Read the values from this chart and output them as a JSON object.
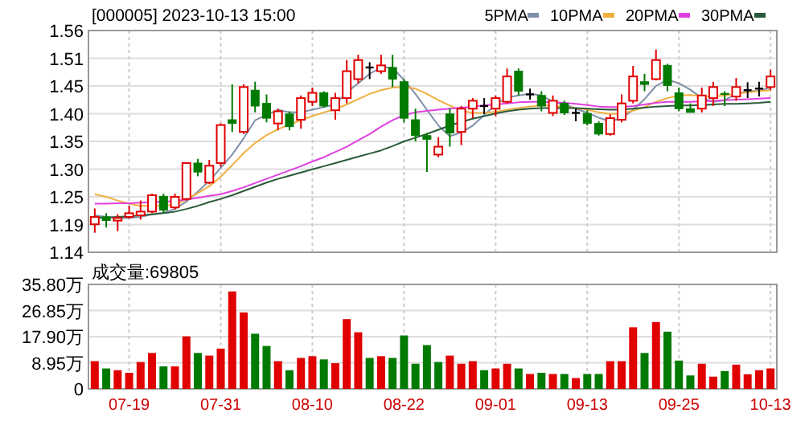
{
  "chart_data": [
    {
      "type": "candlestick",
      "title": "[000005] 2023-10-13 15:00",
      "categories": [
        null,
        null,
        null,
        null,
        null,
        null,
        null,
        null,
        null,
        null,
        null,
        null,
        null,
        null,
        null,
        null,
        null,
        null,
        null,
        null,
        null,
        null,
        null,
        null,
        null,
        null,
        null,
        null,
        null,
        null,
        null,
        null,
        null,
        null,
        null,
        null,
        null,
        null,
        null,
        null,
        null,
        null,
        null,
        null,
        null,
        null,
        null,
        null,
        null,
        null,
        null,
        null,
        null,
        null,
        null,
        null,
        null,
        null,
        null,
        null
      ],
      "ohlc": [
        [
          1.193,
          1.223,
          1.177,
          1.207
        ],
        [
          1.207,
          1.214,
          1.187,
          1.2
        ],
        [
          1.2,
          1.212,
          1.18,
          1.205
        ],
        [
          1.207,
          1.228,
          1.204,
          1.214
        ],
        [
          1.21,
          1.238,
          1.202,
          1.217
        ],
        [
          1.217,
          1.251,
          1.214,
          1.248
        ],
        [
          1.246,
          1.251,
          1.214,
          1.22
        ],
        [
          1.225,
          1.251,
          1.221,
          1.245
        ],
        [
          1.241,
          1.309,
          1.238,
          1.309
        ],
        [
          1.309,
          1.317,
          1.284,
          1.292
        ],
        [
          1.272,
          1.315,
          1.269,
          1.304
        ],
        [
          1.309,
          1.384,
          1.302,
          1.381
        ],
        [
          1.391,
          1.458,
          1.368,
          1.384
        ],
        [
          1.368,
          1.458,
          1.364,
          1.453
        ],
        [
          1.447,
          1.463,
          1.405,
          1.417
        ],
        [
          1.422,
          1.439,
          1.386,
          1.394
        ],
        [
          1.384,
          1.412,
          1.371,
          1.407
        ],
        [
          1.402,
          1.407,
          1.371,
          1.378
        ],
        [
          1.391,
          1.437,
          1.374,
          1.432
        ],
        [
          1.425,
          1.452,
          1.417,
          1.442
        ],
        [
          1.442,
          1.445,
          1.414,
          1.417
        ],
        [
          1.409,
          1.442,
          1.391,
          1.432
        ],
        [
          1.432,
          1.504,
          1.422,
          1.483
        ],
        [
          1.468,
          1.514,
          1.46,
          1.504
        ],
        [
          1.49,
          1.5,
          1.468,
          1.49
        ],
        [
          1.483,
          1.514,
          1.478,
          1.494
        ],
        [
          1.49,
          1.514,
          1.453,
          1.468
        ],
        [
          1.463,
          1.468,
          1.386,
          1.394
        ],
        [
          1.391,
          1.412,
          1.35,
          1.361
        ],
        [
          1.361,
          1.366,
          1.292,
          1.354
        ],
        [
          1.325,
          1.358,
          1.32,
          1.34
        ],
        [
          1.402,
          1.412,
          1.34,
          1.366
        ],
        [
          1.368,
          1.417,
          1.343,
          1.412
        ],
        [
          1.412,
          1.432,
          1.394,
          1.427
        ],
        [
          1.417,
          1.432,
          1.402,
          1.417
        ],
        [
          1.412,
          1.437,
          1.398,
          1.432
        ],
        [
          1.425,
          1.488,
          1.422,
          1.473
        ],
        [
          1.483,
          1.488,
          1.437,
          1.445
        ],
        [
          1.439,
          1.45,
          1.429,
          1.439
        ],
        [
          1.437,
          1.445,
          1.407,
          1.417
        ],
        [
          1.404,
          1.437,
          1.398,
          1.427
        ],
        [
          1.422,
          1.427,
          1.4,
          1.404
        ],
        [
          1.404,
          1.412,
          1.388,
          1.404
        ],
        [
          1.403,
          1.409,
          1.38,
          1.384
        ],
        [
          1.384,
          1.388,
          1.361,
          1.364
        ],
        [
          1.364,
          1.401,
          1.361,
          1.394
        ],
        [
          1.391,
          1.439,
          1.386,
          1.422
        ],
        [
          1.427,
          1.493,
          1.422,
          1.473
        ],
        [
          1.463,
          1.478,
          1.445,
          1.458
        ],
        [
          1.468,
          1.524,
          1.466,
          1.504
        ],
        [
          1.494,
          1.497,
          1.445,
          1.456
        ],
        [
          1.442,
          1.452,
          1.407,
          1.412
        ],
        [
          1.412,
          1.422,
          1.405,
          1.405
        ],
        [
          1.412,
          1.452,
          1.405,
          1.437
        ],
        [
          1.432,
          1.463,
          1.417,
          1.453
        ],
        [
          1.441,
          1.445,
          1.417,
          1.439
        ],
        [
          1.435,
          1.47,
          1.427,
          1.453
        ],
        [
          1.447,
          1.462,
          1.432,
          1.447
        ],
        [
          1.45,
          1.463,
          1.435,
          1.45
        ],
        [
          1.453,
          1.486,
          1.447,
          1.473
        ]
      ],
      "colors": [
        "#e00000",
        "#007a00",
        "#e00000",
        "#e00000",
        "#e00000",
        "#e00000",
        "#007a00",
        "#e00000",
        "#e00000",
        "#007a00",
        "#e00000",
        "#e00000",
        "#007a00",
        "#e00000",
        "#007a00",
        "#007a00",
        "#e00000",
        "#007a00",
        "#e00000",
        "#e00000",
        "#007a00",
        "#e00000",
        "#e00000",
        "#e00000",
        "#000000",
        "#e00000",
        "#007a00",
        "#007a00",
        "#007a00",
        "#007a00",
        "#e00000",
        "#007a00",
        "#e00000",
        "#e00000",
        "#000000",
        "#e00000",
        "#e00000",
        "#007a00",
        "#000000",
        "#007a00",
        "#e00000",
        "#007a00",
        "#000000",
        "#007a00",
        "#007a00",
        "#e00000",
        "#e00000",
        "#e00000",
        "#007a00",
        "#e00000",
        "#007a00",
        "#007a00",
        "#007a00",
        "#e00000",
        "#e00000",
        "#007a00",
        "#e00000",
        "#000000",
        "#000000",
        "#e00000"
      ],
      "series": [
        {
          "name": "5PMA",
          "type": "line",
          "color": "#8090a8",
          "values": [
            1.21,
            1.207,
            1.205,
            1.205,
            1.207,
            1.212,
            1.215,
            1.222,
            1.236,
            1.255,
            1.275,
            1.3,
            1.325,
            1.356,
            1.39,
            1.4,
            1.41,
            1.405,
            1.405,
            1.41,
            1.415,
            1.42,
            1.443,
            1.46,
            1.478,
            1.49,
            1.49,
            1.466,
            1.44,
            1.41,
            1.38,
            1.36,
            1.367,
            1.38,
            1.4,
            1.42,
            1.433,
            1.437,
            1.44,
            1.437,
            1.425,
            1.42,
            1.412,
            1.404,
            1.395,
            1.388,
            1.394,
            1.41,
            1.43,
            1.455,
            1.467,
            1.46,
            1.448,
            1.432,
            1.425,
            1.428,
            1.44,
            1.445,
            1.446,
            1.452
          ]
        },
        {
          "name": "10PMA",
          "type": "line",
          "color": "#f0b040",
          "values": [
            1.25,
            1.245,
            1.238,
            1.232,
            1.228,
            1.228,
            1.228,
            1.23,
            1.24,
            1.252,
            1.265,
            1.283,
            1.305,
            1.328,
            1.347,
            1.362,
            1.373,
            1.382,
            1.39,
            1.398,
            1.405,
            1.411,
            1.42,
            1.43,
            1.44,
            1.447,
            1.452,
            1.453,
            1.45,
            1.44,
            1.428,
            1.418,
            1.408,
            1.404,
            1.404,
            1.406,
            1.41,
            1.413,
            1.416,
            1.418,
            1.418,
            1.415,
            1.413,
            1.41,
            1.405,
            1.402,
            1.403,
            1.408,
            1.415,
            1.425,
            1.432,
            1.437,
            1.438,
            1.436,
            1.435,
            1.437,
            1.44,
            1.443,
            1.445,
            1.447
          ]
        },
        {
          "name": "20PMA",
          "type": "line",
          "color": "#e040e0",
          "values": [
            1.232,
            1.232,
            1.233,
            1.233,
            1.234,
            1.235,
            1.236,
            1.237,
            1.24,
            1.243,
            1.247,
            1.25,
            1.256,
            1.263,
            1.271,
            1.279,
            1.287,
            1.295,
            1.303,
            1.312,
            1.32,
            1.33,
            1.34,
            1.352,
            1.364,
            1.378,
            1.39,
            1.4,
            1.405,
            1.408,
            1.41,
            1.412,
            1.414,
            1.416,
            1.418,
            1.42,
            1.422,
            1.424,
            1.425,
            1.425,
            1.424,
            1.423,
            1.421,
            1.419,
            1.416,
            1.415,
            1.415,
            1.417,
            1.42,
            1.423,
            1.425,
            1.425,
            1.425,
            1.426,
            1.427,
            1.428,
            1.429,
            1.43,
            1.431,
            1.432
          ]
        },
        {
          "name": "30PMA",
          "type": "line",
          "color": "#2a5a3a",
          "values": [
            1.205,
            1.206,
            1.207,
            1.208,
            1.21,
            1.212,
            1.214,
            1.217,
            1.222,
            1.228,
            1.235,
            1.241,
            1.248,
            1.256,
            1.264,
            1.272,
            1.279,
            1.285,
            1.291,
            1.297,
            1.303,
            1.309,
            1.315,
            1.321,
            1.327,
            1.333,
            1.341,
            1.35,
            1.357,
            1.364,
            1.372,
            1.38,
            1.387,
            1.393,
            1.398,
            1.403,
            1.407,
            1.41,
            1.412,
            1.413,
            1.413,
            1.413,
            1.413,
            1.412,
            1.411,
            1.41,
            1.41,
            1.412,
            1.414,
            1.416,
            1.417,
            1.418,
            1.418,
            1.419,
            1.42,
            1.421,
            1.421,
            1.422,
            1.423,
            1.425
          ]
        }
      ],
      "ylim": [
        1.14,
        1.56
      ],
      "yticks": [
        1.14,
        {
          "value": 1.1925,
          "label": "1.19"
        },
        {
          "value": 1.245,
          "label": "1.25"
        },
        {
          "value": 1.2975,
          "label": "1.30"
        },
        1.35,
        {
          "value": 1.4025,
          "label": "1.40"
        },
        {
          "value": 1.455,
          "label": "1.45"
        },
        {
          "value": 1.5075,
          "label": "1.51"
        },
        1.56
      ],
      "grid": true,
      "legend": "top right",
      "tick_labels": "y"
    },
    {
      "type": "bar",
      "categories": [
        null,
        null,
        null,
        "07-19",
        null,
        null,
        null,
        null,
        null,
        null,
        null,
        "07-31",
        null,
        null,
        null,
        null,
        null,
        null,
        null,
        "08-10",
        null,
        null,
        null,
        null,
        null,
        null,
        null,
        "08-22",
        null,
        null,
        null,
        null,
        null,
        null,
        null,
        "09-01",
        null,
        null,
        null,
        null,
        null,
        null,
        null,
        "09-13",
        null,
        null,
        null,
        null,
        null,
        null,
        null,
        "09-25",
        null,
        null,
        null,
        null,
        null,
        null,
        null,
        "10-13"
      ],
      "values": [
        9.5,
        7.0,
        6.4,
        5.5,
        9.2,
        12.3,
        7.7,
        7.7,
        18.0,
        12.3,
        11.4,
        13.8,
        33.4,
        26.2,
        18.9,
        14.7,
        9.5,
        6.4,
        10.6,
        11.2,
        10.1,
        8.8,
        23.9,
        19.4,
        10.6,
        11.2,
        10.6,
        18.3,
        8.6,
        15.0,
        9.2,
        11.4,
        8.6,
        9.5,
        6.4,
        7.0,
        8.6,
        7.0,
        5.1,
        5.5,
        5.1,
        5.1,
        3.7,
        5.1,
        5.1,
        9.5,
        9.5,
        21.1,
        12.3,
        22.9,
        19.6,
        9.7,
        4.6,
        8.6,
        4.2,
        6.1,
        8.3,
        5.0,
        6.4,
        7.0
      ],
      "colors": [
        "#e00000",
        "#007a00",
        "#e00000",
        "#e00000",
        "#e00000",
        "#e00000",
        "#007a00",
        "#e00000",
        "#e00000",
        "#007a00",
        "#e00000",
        "#e00000",
        "#e00000",
        "#e00000",
        "#007a00",
        "#007a00",
        "#e00000",
        "#007a00",
        "#e00000",
        "#e00000",
        "#007a00",
        "#e00000",
        "#e00000",
        "#e00000",
        "#007a00",
        "#e00000",
        "#007a00",
        "#007a00",
        "#007a00",
        "#007a00",
        "#007a00",
        "#e00000",
        "#e00000",
        "#e00000",
        "#007a00",
        "#e00000",
        "#e00000",
        "#007a00",
        "#e00000",
        "#007a00",
        "#e00000",
        "#007a00",
        "#e00000",
        "#007a00",
        "#007a00",
        "#e00000",
        "#e00000",
        "#e00000",
        "#007a00",
        "#e00000",
        "#007a00",
        "#007a00",
        "#007a00",
        "#e00000",
        "#e00000",
        "#007a00",
        "#e00000",
        "#e00000",
        "#e00000",
        "#e00000"
      ],
      "ylim": [
        0,
        35.8
      ],
      "yticks": [
        0,
        {
          "value": 8.95,
          "label": "8.95万"
        },
        {
          "value": 17.9,
          "label": "17.90万"
        },
        {
          "value": 26.85,
          "label": "26.85万"
        },
        {
          "value": 35.8,
          "label": "35.80万"
        }
      ],
      "annotations": [
        "成交量:69805"
      ],
      "grid": true
    }
  ]
}
